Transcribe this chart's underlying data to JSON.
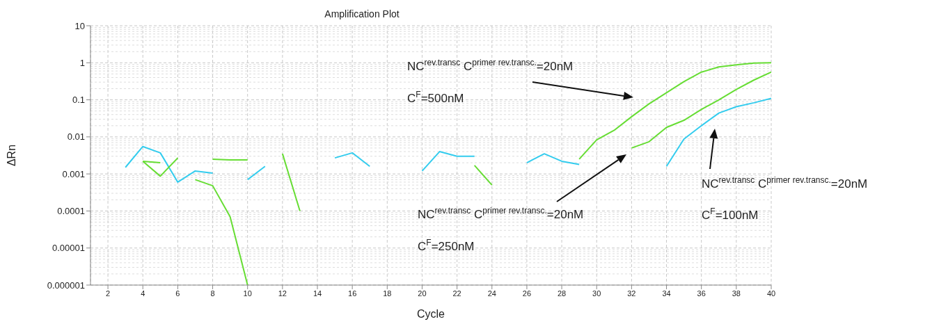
{
  "chart_data": {
    "type": "line",
    "title": "Amplification Plot",
    "xlabel": "Cycle",
    "ylabel": "ΔRn",
    "x": [
      3,
      4,
      5,
      6,
      7,
      8,
      9,
      10,
      11,
      12,
      13,
      14,
      15,
      16,
      17,
      18,
      19,
      20,
      21,
      22,
      23,
      24,
      25,
      26,
      27,
      28,
      29,
      30,
      31,
      32,
      33,
      34,
      35,
      36,
      37,
      38,
      39,
      40
    ],
    "series": [
      {
        "color": "#33ccee",
        "values": [
          0.0015,
          0.0055,
          0.0037,
          0.0006,
          0.0012,
          0.00105,
          null,
          0.0007,
          0.0016,
          null,
          null,
          null,
          0.0027,
          0.0037,
          0.0016,
          null,
          null,
          0.0012,
          0.004,
          0.003,
          0.003,
          null,
          null,
          0.002,
          0.0035,
          0.0022,
          0.0018,
          null,
          null,
          null,
          null,
          0.0016,
          0.0087,
          0.02,
          0.044,
          0.065,
          0.083,
          0.11
        ]
      },
      {
        "color": "#66dd33",
        "values": [
          null,
          0.0022,
          0.00087,
          0.0027,
          null,
          null,
          null,
          null,
          null,
          0.0035,
          0.0001,
          null,
          null,
          null,
          null,
          null,
          null,
          null,
          null,
          null,
          null,
          null,
          null,
          null,
          null,
          null,
          0.0025,
          0.0083,
          0.015,
          0.035,
          0.078,
          0.155,
          0.31,
          0.56,
          0.77,
          0.88,
          0.98,
          1
        ]
      },
      {
        "color": "#66dd33",
        "values": [
          null,
          0.0022,
          0.002,
          null,
          0.0007,
          0.00048,
          7e-05,
          1e-06,
          null,
          null,
          null,
          null,
          null,
          null,
          null,
          null,
          null,
          null,
          null,
          null,
          0.0017,
          0.0005,
          null,
          null,
          null,
          null,
          null,
          null,
          null,
          0.005,
          0.0074,
          0.018,
          0.028,
          0.055,
          0.1,
          0.19,
          0.34,
          0.56
        ]
      },
      {
        "color": "#66dd33",
        "values": [
          null,
          null,
          null,
          null,
          null,
          0.0025,
          0.0024,
          0.0024,
          null,
          null,
          null,
          null,
          null,
          null,
          null,
          null,
          null,
          null,
          null,
          null,
          null,
          null,
          null,
          null,
          null,
          null,
          null,
          null,
          null,
          null,
          null,
          null,
          null,
          null,
          null,
          null,
          null,
          null
        ]
      }
    ],
    "xlim": [
      1,
      40
    ],
    "xticks": [
      2,
      4,
      6,
      8,
      10,
      12,
      14,
      16,
      18,
      20,
      22,
      24,
      26,
      28,
      30,
      32,
      34,
      36,
      38,
      40
    ],
    "ylim": [
      1e-06,
      10
    ],
    "yticks": [
      {
        "value": 1e-06,
        "label": "0.000001"
      },
      {
        "value": 1e-05,
        "label": "0.00001"
      },
      0.0001,
      0.001,
      0.01,
      0.1,
      1,
      10
    ],
    "log": "y",
    "grid": true,
    "marker": "none",
    "line_style": "solid",
    "annotations": [
      "NC$^{rev.transc}$ C$^{primer rev.transc.}$=20nM",
      "C$^{F}$=500nM",
      "NC$^{rev.transc}$ C$^{primer rev.transc.}$=20nM",
      "C$^{F}$=250nM",
      "NC$^{rev.transc}$ C$^{primer rev.transc.}$=20nM",
      "C$^{F}$=100nM"
    ]
  }
}
